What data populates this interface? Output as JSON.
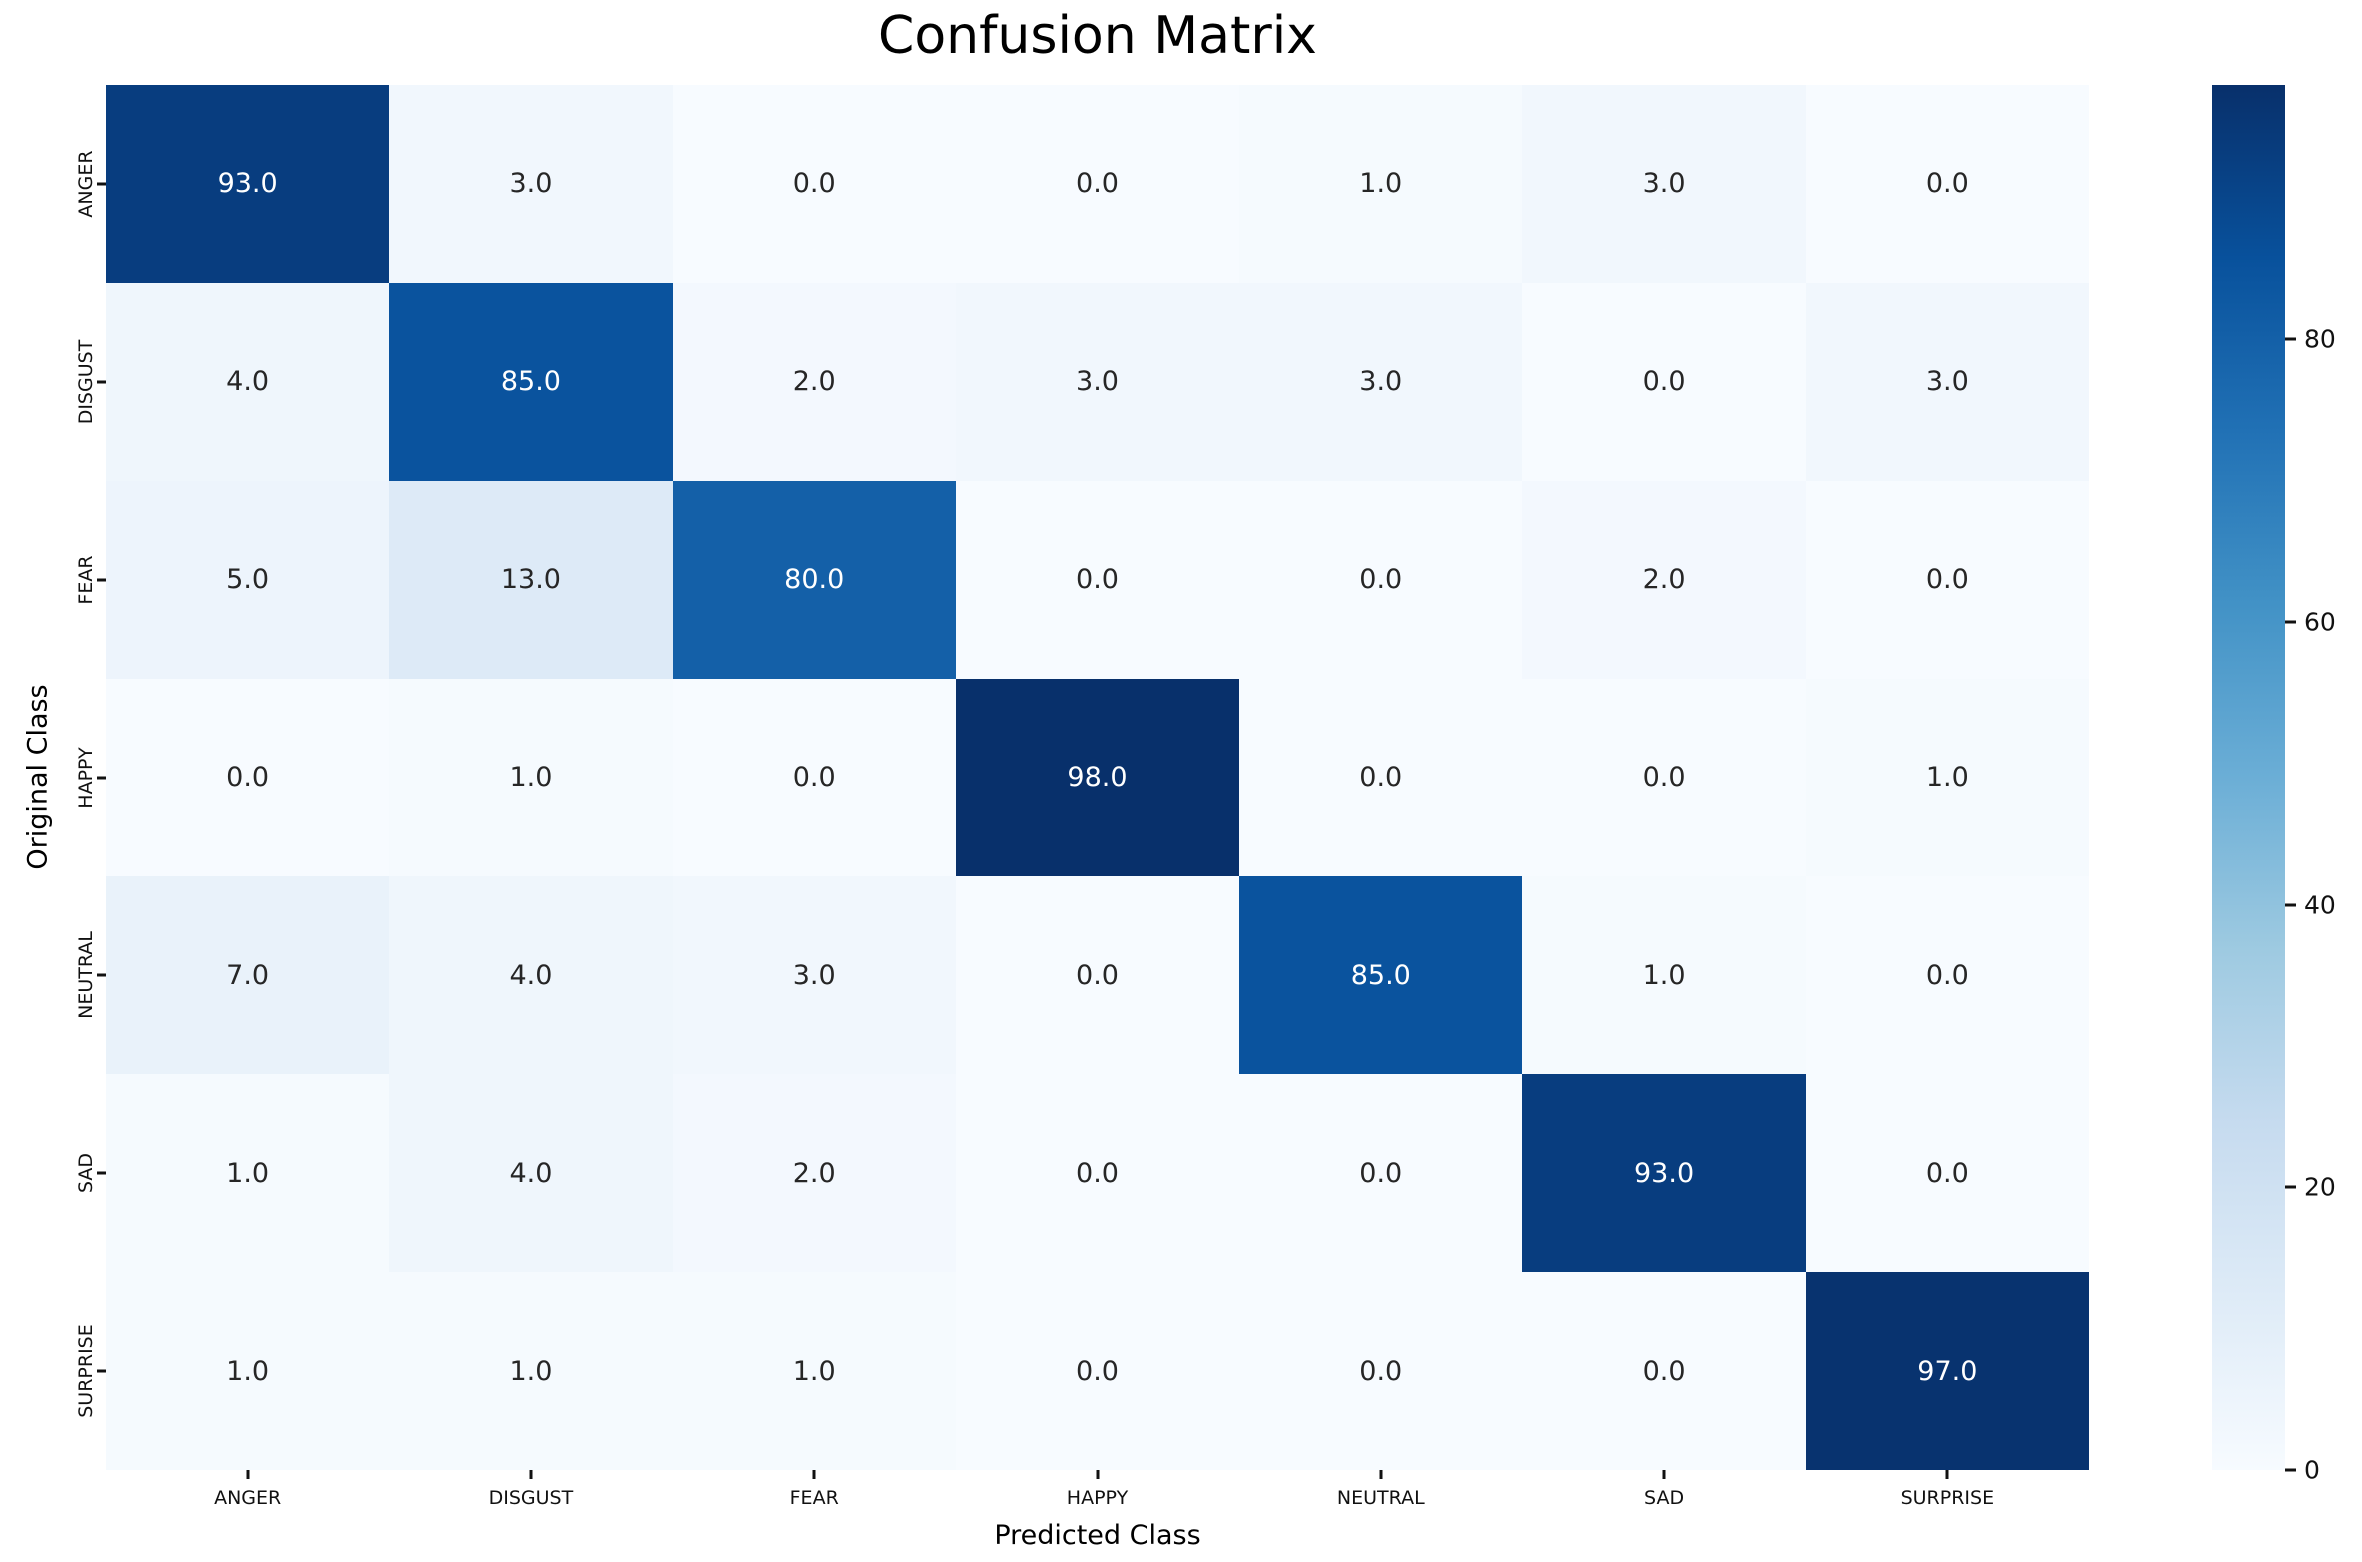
{
  "title": "Confusion Matrix",
  "x_axis_label": "Predicted Class",
  "y_axis_label": "Original Class",
  "chart_data": {
    "type": "heatmap",
    "title": "Confusion Matrix",
    "xlabel": "Predicted Class",
    "ylabel": "Original Class",
    "x_categories": [
      "ANGER",
      "DISGUST",
      "FEAR",
      "HAPPY",
      "NEUTRAL",
      "SAD",
      "SURPRISE"
    ],
    "y_categories": [
      "ANGER",
      "DISGUST",
      "FEAR",
      "HAPPY",
      "NEUTRAL",
      "SAD",
      "SURPRISE"
    ],
    "matrix": [
      [
        93.0,
        3.0,
        0.0,
        0.0,
        1.0,
        3.0,
        0.0
      ],
      [
        4.0,
        85.0,
        2.0,
        3.0,
        3.0,
        0.0,
        3.0
      ],
      [
        5.0,
        13.0,
        80.0,
        0.0,
        0.0,
        2.0,
        0.0
      ],
      [
        0.0,
        1.0,
        0.0,
        98.0,
        0.0,
        0.0,
        1.0
      ],
      [
        7.0,
        4.0,
        3.0,
        0.0,
        85.0,
        1.0,
        0.0
      ],
      [
        1.0,
        4.0,
        2.0,
        0.0,
        0.0,
        93.0,
        0.0
      ],
      [
        1.0,
        1.0,
        1.0,
        0.0,
        0.0,
        0.0,
        97.0
      ]
    ],
    "annotation_decimals": 1,
    "vmin": 0,
    "vmax": 98,
    "colormap": "Blues",
    "colormap_stops": [
      "#f7fbff",
      "#deebf7",
      "#c6dbef",
      "#9ecae1",
      "#6baed6",
      "#4292c6",
      "#2171b5",
      "#08519c",
      "#08306b"
    ],
    "annotation_color_on_light": "#262626",
    "annotation_color_on_dark": "#ffffff",
    "colorbar_ticks": [
      0,
      20,
      40,
      60,
      80
    ],
    "legend_position": "right-colorbar",
    "grid": false
  }
}
